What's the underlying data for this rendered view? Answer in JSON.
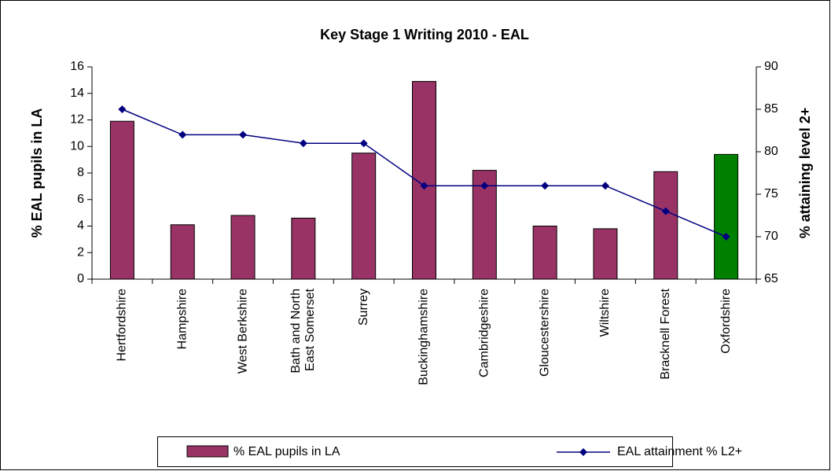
{
  "chart_data": {
    "type": "bar_line",
    "title": "Key Stage 1 Writing 2010 - EAL",
    "categories": [
      "Hertfordshire",
      "Hampshire",
      "West Berkshire",
      "Bath and North\nEast Somerset",
      "Surrey",
      "Buckinghamshire",
      "Cambridgeshire",
      "Gloucestershire",
      "Wiltshire",
      "Bracknell Forest",
      "Oxfordshire"
    ],
    "y_label": "% EAL pupils in LA",
    "y2_label": "% attaining level 2+",
    "series": [
      {
        "name": "% EAL pupils in LA",
        "type": "bar",
        "color": "#993366",
        "colors": [
          "#993366",
          "#993366",
          "#993366",
          "#993366",
          "#993366",
          "#993366",
          "#993366",
          "#993366",
          "#993366",
          "#993366",
          "#008000"
        ],
        "values": [
          11.9,
          4.1,
          4.8,
          4.6,
          9.5,
          14.9,
          8.2,
          4.0,
          3.8,
          8.1,
          9.4
        ]
      },
      {
        "name": "EAL attainment % L2+",
        "type": "line",
        "axis": "y2",
        "color": "#000080",
        "values": [
          85,
          82,
          82,
          81,
          81,
          76,
          76,
          76,
          76,
          73,
          70
        ]
      }
    ],
    "ylim": [
      0,
      16
    ],
    "yticks": [
      0,
      2,
      4,
      6,
      8,
      10,
      12,
      14,
      16
    ],
    "y2lim": [
      65,
      90
    ],
    "y2ticks": [
      65,
      70,
      75,
      80,
      85,
      90
    ],
    "grid": false,
    "legend": "bottom"
  }
}
